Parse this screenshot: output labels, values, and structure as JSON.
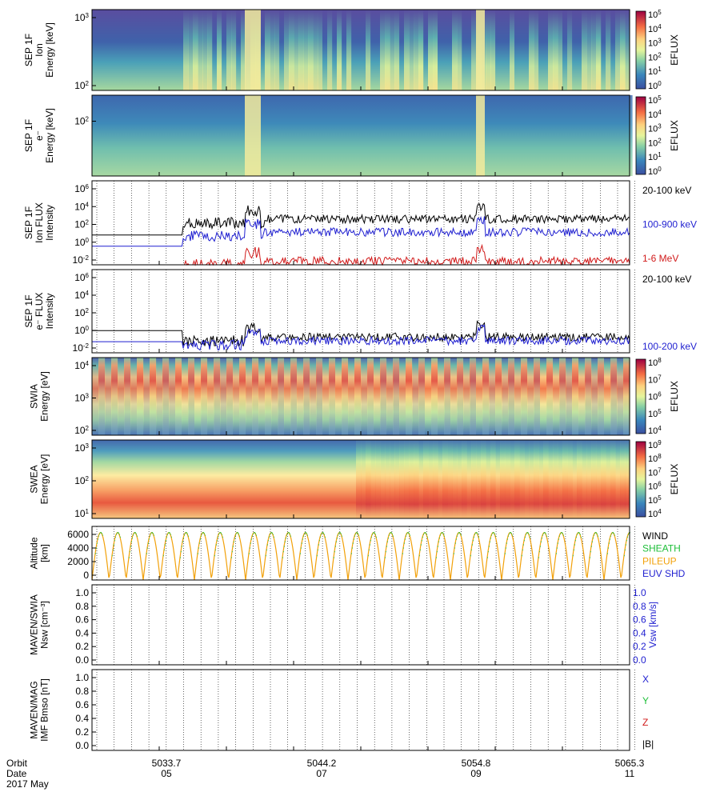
{
  "colors": {
    "black": "#000000",
    "blue": "#1f1fd0",
    "red": "#d11a1a",
    "green": "#1fbf3a",
    "orange": "#f2a10a",
    "white": "#ffffff"
  },
  "colorbar_icon": "spectral-colorbar",
  "x_axis": {
    "row_labels": [
      "Orbit",
      "Date",
      "2017 May"
    ],
    "orbit_ticks": [
      "5033.7",
      "5044.2",
      "5054.8",
      "5065.3"
    ],
    "date_ticks": [
      "05",
      "07",
      "09",
      "11"
    ],
    "range_days": [
      3.0,
      11.0
    ],
    "tick_days": [
      5,
      7,
      9,
      11
    ]
  },
  "chart_data": [
    {
      "type": "heatmap",
      "ylabel": [
        "SEP 1F",
        "Ion",
        "Energy [keV]"
      ],
      "ytick_labels": [
        "10^3",
        "10^2"
      ],
      "colorbar": {
        "label": "EFLUX",
        "tick_labels": [
          "10^5",
          "10^4",
          "10^3",
          "10^2",
          "10^1",
          "10^0"
        ]
      }
    },
    {
      "type": "heatmap",
      "ylabel": [
        "SEP 1F",
        "e⁻",
        "Energy [keV]"
      ],
      "ytick_labels": [
        "10^2"
      ],
      "colorbar": {
        "label": "EFLUX",
        "tick_labels": [
          "10^5",
          "10^4",
          "10^3",
          "10^2",
          "10^1",
          "10^0"
        ]
      }
    },
    {
      "type": "line",
      "ylabel": [
        "SEP 1F",
        "Ion FLUX",
        "Intensity"
      ],
      "ytick_labels": [
        "10^6",
        "10^4",
        "10^2",
        "10^0",
        "10^-2"
      ],
      "log_ylim": [
        -3,
        6
      ],
      "series": [
        {
          "name": "20-100 keV",
          "color": "#000000",
          "base_log": 0.2,
          "late_log": 1.9
        },
        {
          "name": "100-900 keV",
          "color": "#1f1fd0",
          "base_log": -1.0,
          "late_log": 0.5
        },
        {
          "name": "1-6 MeV",
          "color": "#d11a1a",
          "base_log": -3.0,
          "late_log": -2.6
        }
      ]
    },
    {
      "type": "line",
      "ylabel": [
        "SEP 1F",
        "e⁻ FLUX",
        "Intensity"
      ],
      "ytick_labels": [
        "10^6",
        "10^4",
        "10^2",
        "10^0",
        "10^-2"
      ],
      "log_ylim": [
        -3,
        6
      ],
      "series": [
        {
          "name": "20-100 keV",
          "color": "#000000",
          "base_log": -0.6,
          "late_log": -1.3
        },
        {
          "name": "100-200 keV",
          "color": "#1f1fd0",
          "base_log": -1.8,
          "late_log": -1.7
        }
      ]
    },
    {
      "type": "heatmap",
      "ylabel": [
        "SWIA",
        "Energy [eV]"
      ],
      "ytick_labels": [
        "10^4",
        "10^3",
        "10^2"
      ],
      "colorbar": {
        "label": "EFLUX",
        "tick_labels": [
          "10^8",
          "10^7",
          "10^6",
          "10^5",
          "10^4"
        ]
      }
    },
    {
      "type": "heatmap",
      "ylabel": [
        "SWEA",
        "Energy [eV]"
      ],
      "ytick_labels": [
        "10^3",
        "10^2",
        "10^1"
      ],
      "colorbar": {
        "label": "EFLUX",
        "tick_labels": [
          "10^9",
          "10^8",
          "10^7",
          "10^6",
          "10^5",
          "10^4"
        ]
      }
    },
    {
      "type": "line",
      "ylabel": [
        "Altitude",
        "[km]"
      ],
      "ytick_labels": [
        "6000",
        "4000",
        "2000",
        "0"
      ],
      "ylim": [
        0,
        7000
      ],
      "orbit_apoapsis_km": 6200,
      "series": [
        {
          "name": "WIND",
          "color": "#000000"
        },
        {
          "name": "SHEATH",
          "color": "#1fbf3a"
        },
        {
          "name": "PILEUP",
          "color": "#f2a10a"
        },
        {
          "name": "EUV SHD",
          "color": "#1f1fd0"
        }
      ]
    },
    {
      "type": "line",
      "ylabel": [
        "MAVEN/SWIA",
        "Nsw [cm⁻³]"
      ],
      "ytick_labels": [
        "1.0",
        "0.8",
        "0.6",
        "0.4",
        "0.2",
        "0.0"
      ],
      "ylim": [
        0,
        1
      ],
      "y2label": "Vsw [km/s]",
      "y2tick_labels": [
        "1.0",
        "0.8",
        "0.6",
        "0.4",
        "0.2",
        "0.0"
      ],
      "series": []
    },
    {
      "type": "line",
      "ylabel": [
        "MAVEN/MAG",
        "IMF Bmso [nT]"
      ],
      "ytick_labels": [
        "1.0",
        "0.8",
        "0.6",
        "0.4",
        "0.2",
        "0.0"
      ],
      "ylim": [
        0,
        1
      ],
      "series": [
        {
          "name": "X",
          "color": "#1f1fd0"
        },
        {
          "name": "Y",
          "color": "#1fbf3a"
        },
        {
          "name": "Z",
          "color": "#d11a1a"
        },
        {
          "name": "|B|",
          "color": "#000000"
        }
      ]
    }
  ]
}
